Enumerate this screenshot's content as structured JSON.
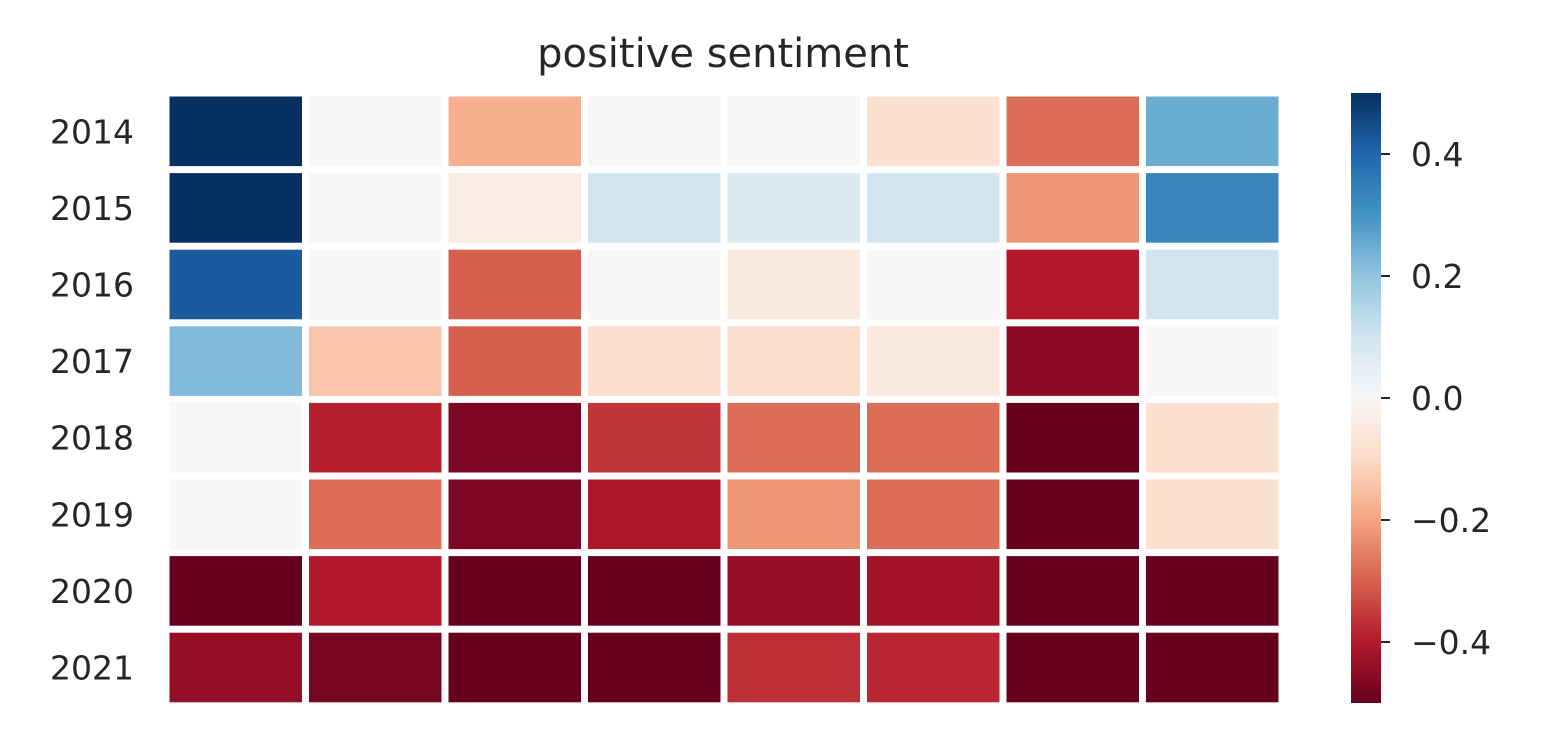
{
  "chart_data": {
    "type": "heatmap",
    "title": "positive sentiment",
    "rows": [
      "2014",
      "2015",
      "2016",
      "2017",
      "2018",
      "2019",
      "2020",
      "2021"
    ],
    "column_count": 8,
    "values": [
      [
        0.5,
        0.0,
        -0.18,
        0.0,
        0.0,
        -0.08,
        -0.28,
        0.25
      ],
      [
        0.5,
        0.0,
        -0.04,
        0.1,
        0.07,
        0.1,
        -0.22,
        0.33
      ],
      [
        0.42,
        0.0,
        -0.3,
        0.0,
        -0.05,
        0.0,
        -0.4,
        0.1
      ],
      [
        0.22,
        -0.14,
        -0.3,
        -0.08,
        -0.09,
        -0.05,
        -0.45,
        0.0
      ],
      [
        0.0,
        -0.39,
        -0.47,
        -0.36,
        -0.28,
        -0.28,
        -0.5,
        -0.08
      ],
      [
        0.0,
        -0.28,
        -0.47,
        -0.41,
        -0.22,
        -0.28,
        -0.5,
        -0.08
      ],
      [
        -0.5,
        -0.4,
        -0.5,
        -0.5,
        -0.44,
        -0.42,
        -0.5,
        -0.5
      ],
      [
        -0.44,
        -0.48,
        -0.5,
        -0.5,
        -0.37,
        -0.38,
        -0.5,
        -0.5
      ]
    ],
    "colorbar": {
      "colormap": "RdBu",
      "vmin": -0.5,
      "vmax": 0.5,
      "ticks": [
        0.4,
        0.2,
        0.0,
        -0.2,
        -0.4
      ],
      "tick_labels": [
        "0.4",
        "0.2",
        "0.0",
        "−0.2",
        "−0.4"
      ]
    },
    "xlabel": "",
    "ylabel": ""
  }
}
